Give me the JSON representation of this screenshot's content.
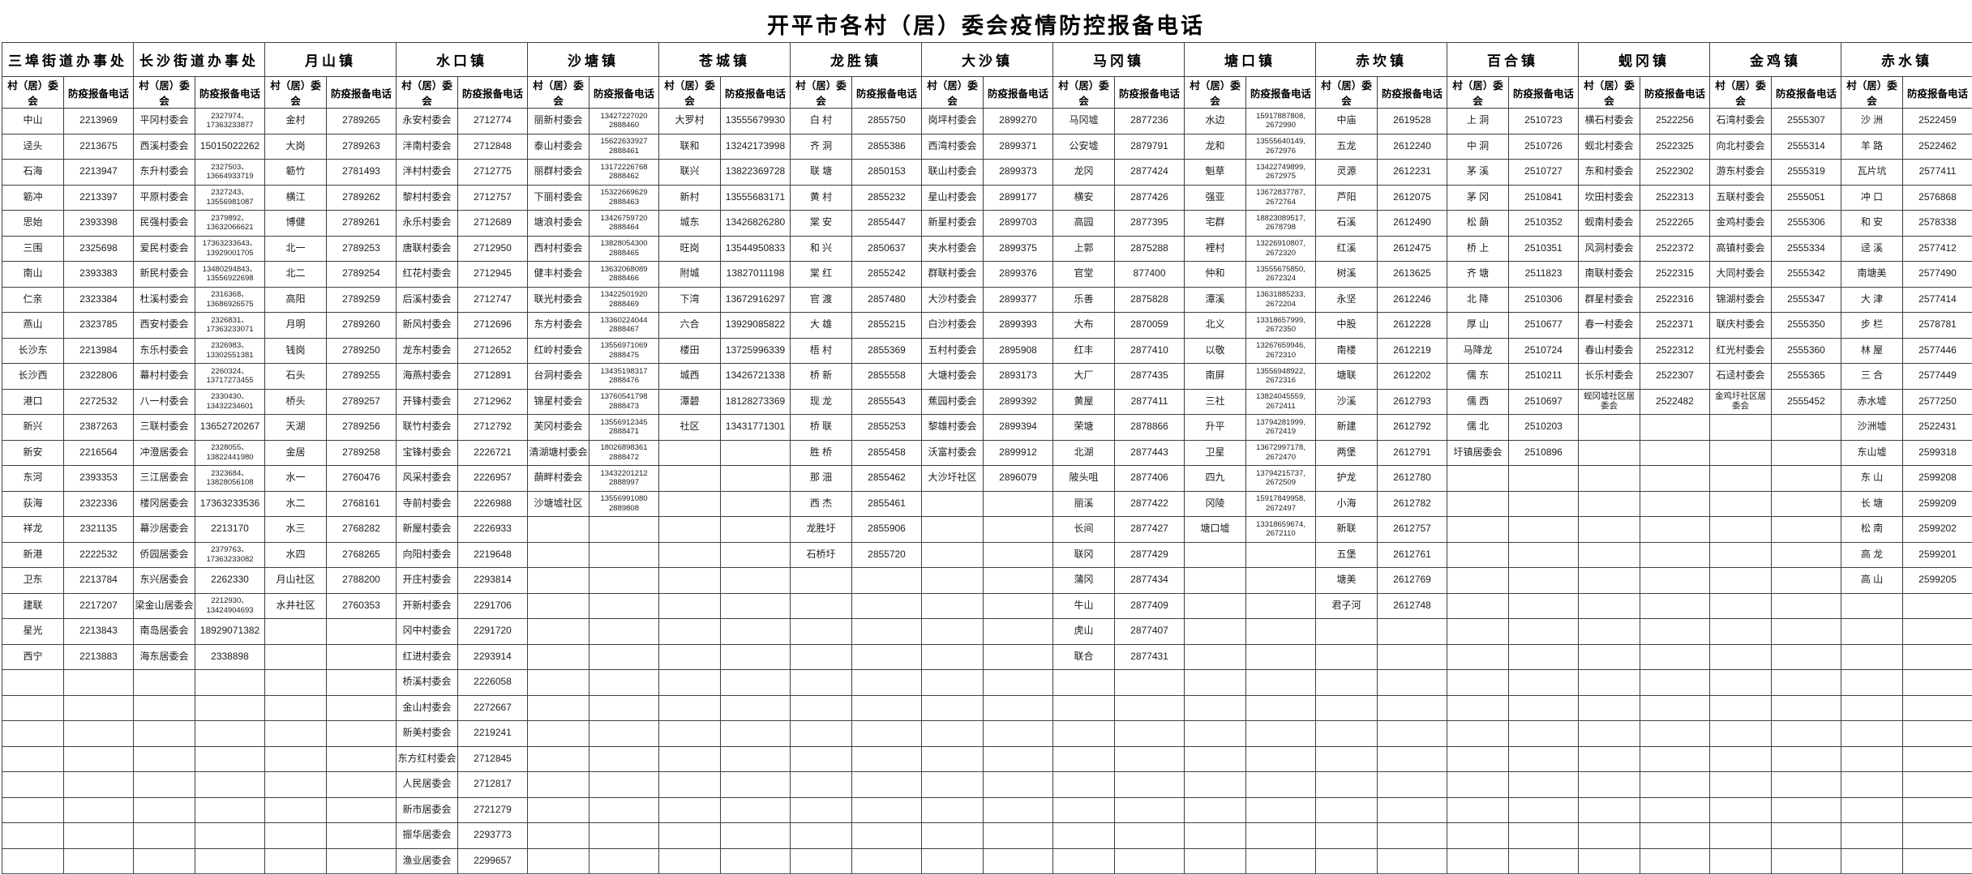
{
  "title": "开平市各村（居）委会疫情防控报备电话",
  "columns": {
    "name": "村（居）委会",
    "phone": "防疫报备电话"
  },
  "grid": {
    "data_rows": 30,
    "name_col_width": 76,
    "phone_col_width": 86
  },
  "groups": [
    {
      "town": "三埠街道办事处",
      "rows": [
        [
          "中山",
          "2213969"
        ],
        [
          "迳头",
          "2213675"
        ],
        [
          "石海",
          "2213947"
        ],
        [
          "簕冲",
          "2213397"
        ],
        [
          "思始",
          "2393398"
        ],
        [
          "三围",
          "2325698"
        ],
        [
          "南山",
          "2393383"
        ],
        [
          "仁亲",
          "2323384"
        ],
        [
          "燕山",
          "2323785"
        ],
        [
          "长沙东",
          "2213984"
        ],
        [
          "长沙西",
          "2322806"
        ],
        [
          "港口",
          "2272532"
        ],
        [
          "新兴",
          "2387263"
        ],
        [
          "新安",
          "2216564"
        ],
        [
          "东河",
          "2393353"
        ],
        [
          "荻海",
          "2322336"
        ],
        [
          "祥龙",
          "2321135"
        ],
        [
          "新港",
          "2222532"
        ],
        [
          "卫东",
          "2213784"
        ],
        [
          "建联",
          "2217207"
        ],
        [
          "星光",
          "2213843"
        ],
        [
          "西宁",
          "2213883"
        ]
      ]
    },
    {
      "town": "长沙街道办事处",
      "rows": [
        [
          "平冈村委会",
          "2327974、\n17363233877"
        ],
        [
          "西溪村委会",
          "15015022262"
        ],
        [
          "东升村委会",
          "2327503、\n13664933719"
        ],
        [
          "平原村委会",
          "2327243、\n13556981087"
        ],
        [
          "民强村委会",
          "2379892、\n13632066621"
        ],
        [
          "爱民村委会",
          "17363233643、\n13929001705"
        ],
        [
          "新民村委会",
          "13480294843、\n13556922698"
        ],
        [
          "杜溪村委会",
          "2316368、\n13686926575"
        ],
        [
          "西安村委会",
          "2326831、\n17363233071"
        ],
        [
          "东乐村委会",
          "2326983、\n13302551381"
        ],
        [
          "幕村村委会",
          "2260324、\n13717273455"
        ],
        [
          "八一村委会",
          "2330430、\n13432234601"
        ],
        [
          "三联村委会",
          "13652720267"
        ],
        [
          "冲澄居委会",
          "2328055、\n13822441980"
        ],
        [
          "三江居委会",
          "2323684、\n13828056108"
        ],
        [
          "楼冈居委会",
          "17363233536"
        ],
        [
          "幕沙居委会",
          "2213170"
        ],
        [
          "侨园居委会",
          "2379763、\n17363233082"
        ],
        [
          "东兴居委会",
          "2262330"
        ],
        [
          "梁金山居委会",
          "2212930、\n13424904693"
        ],
        [
          "南岛居委会",
          "18929071382"
        ],
        [
          "海东居委会",
          "2338898"
        ]
      ]
    },
    {
      "town": "月山镇",
      "rows": [
        [
          "金村",
          "2789265"
        ],
        [
          "大岗",
          "2789263"
        ],
        [
          "簕竹",
          "2781493"
        ],
        [
          "横江",
          "2789262"
        ],
        [
          "博健",
          "2789261"
        ],
        [
          "北一",
          "2789253"
        ],
        [
          "北二",
          "2789254"
        ],
        [
          "高阳",
          "2789259"
        ],
        [
          "月明",
          "2789260"
        ],
        [
          "钱岗",
          "2789250"
        ],
        [
          "石头",
          "2789255"
        ],
        [
          "桥头",
          "2789257"
        ],
        [
          "天湖",
          "2789256"
        ],
        [
          "金居",
          "2789258"
        ],
        [
          "水一",
          "2760476"
        ],
        [
          "水二",
          "2768161"
        ],
        [
          "水三",
          "2768282"
        ],
        [
          "水四",
          "2768265"
        ],
        [
          "月山社区",
          "2788200"
        ],
        [
          "水井社区",
          "2760353"
        ]
      ]
    },
    {
      "town": "水口镇",
      "rows": [
        [
          "永安村委会",
          "2712774"
        ],
        [
          "泮南村委会",
          "2712848"
        ],
        [
          "泮村村委会",
          "2712775"
        ],
        [
          "黎村村委会",
          "2712757"
        ],
        [
          "永乐村委会",
          "2712689"
        ],
        [
          "唐联村委会",
          "2712950"
        ],
        [
          "红花村委会",
          "2712945"
        ],
        [
          "后溪村委会",
          "2712747"
        ],
        [
          "新风村委会",
          "2712696"
        ],
        [
          "龙东村委会",
          "2712652"
        ],
        [
          "海燕村委会",
          "2712891"
        ],
        [
          "开锋村委会",
          "2712962"
        ],
        [
          "联竹村委会",
          "2712792"
        ],
        [
          "宝锋村委会",
          "2226721"
        ],
        [
          "风采村委会",
          "2226957"
        ],
        [
          "寺前村委会",
          "2226988"
        ],
        [
          "新屋村委会",
          "2226933"
        ],
        [
          "向阳村委会",
          "2219648"
        ],
        [
          "开庄村委会",
          "2293814"
        ],
        [
          "开新村委会",
          "2291706"
        ],
        [
          "冈中村委会",
          "2291720"
        ],
        [
          "红进村委会",
          "2293914"
        ],
        [
          "桥溪村委会",
          "2226058"
        ],
        [
          "金山村委会",
          "2272667"
        ],
        [
          "新美村委会",
          "2219241"
        ],
        [
          "东方红村委会",
          "2712845"
        ],
        [
          "人民居委会",
          "2712817"
        ],
        [
          "新市居委会",
          "2721279"
        ],
        [
          "振华居委会",
          "2293773"
        ],
        [
          "渔业居委会",
          "2299657"
        ]
      ]
    },
    {
      "town": "沙塘镇",
      "rows": [
        [
          "丽新村委会",
          "13427227020\n2888460"
        ],
        [
          "泰山村委会",
          "15622633927\n2888461"
        ],
        [
          "丽群村委会",
          "13172226768\n2888462"
        ],
        [
          "下丽村委会",
          "15322669629\n2888463"
        ],
        [
          "塘浪村委会",
          "13426759720\n2888464"
        ],
        [
          "西村村委会",
          "13828054300\n2888465"
        ],
        [
          "健丰村委会",
          "13632068089\n2888466"
        ],
        [
          "联光村委会",
          "13422501920\n2888469"
        ],
        [
          "东方村委会",
          "13360224044\n2888467"
        ],
        [
          "红岭村委会",
          "13556971069\n2888475"
        ],
        [
          "台洞村委会",
          "13435198317\n2888476"
        ],
        [
          "锦星村委会",
          "13760541798\n2888473"
        ],
        [
          "芙冈村委会",
          "13556912345\n2888471"
        ],
        [
          "清湖塘村委会",
          "18026898361\n2888472"
        ],
        [
          "蓢畔村委会",
          "13432201212\n2888997"
        ],
        [
          "沙塘墟社区",
          "13556991080\n2889808"
        ]
      ]
    },
    {
      "town": "苍城镇",
      "rows": [
        [
          "大罗村",
          "13555679930"
        ],
        [
          "联和",
          "13242173998"
        ],
        [
          "联兴",
          "13822369728"
        ],
        [
          "新村",
          "13555683171"
        ],
        [
          "城东",
          "13426826280"
        ],
        [
          "旺岗",
          "13544950833"
        ],
        [
          "附城",
          "13827011198"
        ],
        [
          "下湾",
          "13672916297"
        ],
        [
          "六合",
          "13929085822"
        ],
        [
          "楼田",
          "13725996339"
        ],
        [
          "城西",
          "13426721338"
        ],
        [
          "潭碧",
          "18128273369"
        ],
        [
          "社区",
          "13431771301"
        ]
      ]
    },
    {
      "town": "龙胜镇",
      "rows": [
        [
          "白 村",
          "2855750"
        ],
        [
          "齐 洞",
          "2855386"
        ],
        [
          "联 塘",
          "2850153"
        ],
        [
          "黄 村",
          "2855232"
        ],
        [
          "棠 安",
          "2855447"
        ],
        [
          "和 兴",
          "2850637"
        ],
        [
          "棠 红",
          "2855242"
        ],
        [
          "官 渡",
          "2857480"
        ],
        [
          "大 雄",
          "2855215"
        ],
        [
          "梧 村",
          "2855369"
        ],
        [
          "桥 新",
          "2855558"
        ],
        [
          "现 龙",
          "2855543"
        ],
        [
          "桥 联",
          "2855253"
        ],
        [
          "胜 桥",
          "2855458"
        ],
        [
          "那 沺",
          "2855462"
        ],
        [
          "西 杰",
          "2855461"
        ],
        [
          "龙胜圩",
          "2855906"
        ],
        [
          "石桥圩",
          "2855720"
        ]
      ]
    },
    {
      "town": "大沙镇",
      "rows": [
        [
          "岗坪村委会",
          "2899270"
        ],
        [
          "西湾村委会",
          "2899371"
        ],
        [
          "联山村委会",
          "2899373"
        ],
        [
          "星山村委会",
          "2899177"
        ],
        [
          "新星村委会",
          "2899703"
        ],
        [
          "夹水村委会",
          "2899375"
        ],
        [
          "群联村委会",
          "2899376"
        ],
        [
          "大沙村委会",
          "2899377"
        ],
        [
          "白沙村委会",
          "2899393"
        ],
        [
          "五村村委会",
          "2895908"
        ],
        [
          "大塘村委会",
          "2893173"
        ],
        [
          "蕉园村委会",
          "2899392"
        ],
        [
          "黎雄村委会",
          "2899394"
        ],
        [
          "沃富村委会",
          "2899912"
        ],
        [
          "大沙圩社区",
          "2896079"
        ]
      ]
    },
    {
      "town": "马冈镇",
      "rows": [
        [
          "马冈墟",
          "2877236"
        ],
        [
          "公安墟",
          "2879791"
        ],
        [
          "龙冈",
          "2877424"
        ],
        [
          "横安",
          "2877426"
        ],
        [
          "高园",
          "2877395"
        ],
        [
          "上郭",
          "2875288"
        ],
        [
          "官堂",
          "877400"
        ],
        [
          "乐善",
          "2875828"
        ],
        [
          "大布",
          "2870059"
        ],
        [
          "红丰",
          "2877410"
        ],
        [
          "大厂",
          "2877435"
        ],
        [
          "黄屋",
          "2877411"
        ],
        [
          "荣塘",
          "2878866"
        ],
        [
          "北湖",
          "2877443"
        ],
        [
          "陂头咀",
          "2877406"
        ],
        [
          "丽溪",
          "2877422"
        ],
        [
          "长间",
          "2877427"
        ],
        [
          "联冈",
          "2877429"
        ],
        [
          "蒲冈",
          "2877434"
        ],
        [
          "牛山",
          "2877409"
        ],
        [
          "虎山",
          "2877407"
        ],
        [
          "联合",
          "2877431"
        ]
      ]
    },
    {
      "town": "塘口镇",
      "rows": [
        [
          "水边",
          "15917887808,\n2672990"
        ],
        [
          "龙和",
          "13555640149,\n2672976"
        ],
        [
          "魁草",
          "13422749899,\n2672975"
        ],
        [
          "强亚",
          "13672837787,\n2672764"
        ],
        [
          "宅群",
          "18823089517,\n2678798"
        ],
        [
          "裡村",
          "13226910807,\n2672320"
        ],
        [
          "仲和",
          "13555675850,\n2672324"
        ],
        [
          "潭溪",
          "13631885233,\n2672204"
        ],
        [
          "北义",
          "13318657999,\n2672350"
        ],
        [
          "以敬",
          "13267659946,\n2672310"
        ],
        [
          "南屏",
          "13556948922,\n2672316"
        ],
        [
          "三社",
          "13824045559,\n2672411"
        ],
        [
          "升平",
          "13794281999,\n2672419"
        ],
        [
          "卫星",
          "13672997178,\n2672470"
        ],
        [
          "四九",
          "13794215737,\n2672509"
        ],
        [
          "冈陵",
          "15917849958,\n2672497"
        ],
        [
          "塘口墟",
          "13318659674,\n2672110"
        ]
      ]
    },
    {
      "town": "赤坎镇",
      "rows": [
        [
          "中庙",
          "2619528"
        ],
        [
          "五龙",
          "2612240"
        ],
        [
          "灵源",
          "2612231"
        ],
        [
          "芦阳",
          "2612075"
        ],
        [
          "石溪",
          "2612490"
        ],
        [
          "红溪",
          "2612475"
        ],
        [
          "树溪",
          "2613625"
        ],
        [
          "永坚",
          "2612246"
        ],
        [
          "中股",
          "2612228"
        ],
        [
          "南楼",
          "2612219"
        ],
        [
          "塘联",
          "2612202"
        ],
        [
          "沙溪",
          "2612793"
        ],
        [
          "新建",
          "2612792"
        ],
        [
          "两堡",
          "2612791"
        ],
        [
          "护龙",
          "2612780"
        ],
        [
          "小海",
          "2612782"
        ],
        [
          "新联",
          "2612757"
        ],
        [
          "五堡",
          "2612761"
        ],
        [
          "塘美",
          "2612769"
        ],
        [
          "君子河",
          "2612748"
        ]
      ]
    },
    {
      "town": "百合镇",
      "rows": [
        [
          "上 洞",
          "2510723"
        ],
        [
          "中 洞",
          "2510726"
        ],
        [
          "茅 溪",
          "2510727"
        ],
        [
          "茅 冈",
          "2510841"
        ],
        [
          "松 蓢",
          "2510352"
        ],
        [
          "桥 上",
          "2510351"
        ],
        [
          "齐 塘",
          "2511823"
        ],
        [
          "北 降",
          "2510306"
        ],
        [
          "厚 山",
          "2510677"
        ],
        [
          "马降龙",
          "2510724"
        ],
        [
          "儒 东",
          "2510211"
        ],
        [
          "儒 西",
          "2510697"
        ],
        [
          "儒 北",
          "2510203"
        ],
        [
          "圩镇居委会",
          "2510896"
        ]
      ]
    },
    {
      "town": "蚬冈镇",
      "rows": [
        [
          "横石村委会",
          "2522256"
        ],
        [
          "蚬北村委会",
          "2522325"
        ],
        [
          "东和村委会",
          "2522302"
        ],
        [
          "坎田村委会",
          "2522313"
        ],
        [
          "蚬南村委会",
          "2522265"
        ],
        [
          "风洞村委会",
          "2522372"
        ],
        [
          "南联村委会",
          "2522315"
        ],
        [
          "群星村委会",
          "2522316"
        ],
        [
          "春一村委会",
          "2522371"
        ],
        [
          "春山村委会",
          "2522312"
        ],
        [
          "长乐村委会",
          "2522307"
        ],
        [
          "蚬冈墟社区居委会",
          "2522482"
        ]
      ]
    },
    {
      "town": "金鸡镇",
      "rows": [
        [
          "石湾村委会",
          "2555307"
        ],
        [
          "向北村委会",
          "2555314"
        ],
        [
          "游东村委会",
          "2555319"
        ],
        [
          "五联村委会",
          "2555051"
        ],
        [
          "金鸡村委会",
          "2555306"
        ],
        [
          "高镇村委会",
          "2555334"
        ],
        [
          "大同村委会",
          "2555342"
        ],
        [
          "锦湖村委会",
          "2555347"
        ],
        [
          "联庆村委会",
          "2555350"
        ],
        [
          "红光村委会",
          "2555360"
        ],
        [
          "石迳村委会",
          "2555365"
        ],
        [
          "金鸡圩社区居委会",
          "2555452"
        ]
      ]
    },
    {
      "town": "赤水镇",
      "rows": [
        [
          "沙 洲",
          "2522459"
        ],
        [
          "羊 路",
          "2522462"
        ],
        [
          "瓦片坑",
          "2577411"
        ],
        [
          "冲 口",
          "2576868"
        ],
        [
          "和 安",
          "2578338"
        ],
        [
          "迳 溪",
          "2577412"
        ],
        [
          "南塘美",
          "2577490"
        ],
        [
          "大 津",
          "2577414"
        ],
        [
          "步 栏",
          "2578781"
        ],
        [
          "林 屋",
          "2577446"
        ],
        [
          "三 合",
          "2577449"
        ],
        [
          "赤水墟",
          "2577250"
        ],
        [
          "沙洲墟",
          "2522431"
        ],
        [
          "东山墟",
          "2599318"
        ],
        [
          "东 山",
          "2599208"
        ],
        [
          "长 塘",
          "2599209"
        ],
        [
          "松 南",
          "2599202"
        ],
        [
          "高 龙",
          "2599201"
        ],
        [
          "高 山",
          "2599205"
        ]
      ]
    }
  ]
}
